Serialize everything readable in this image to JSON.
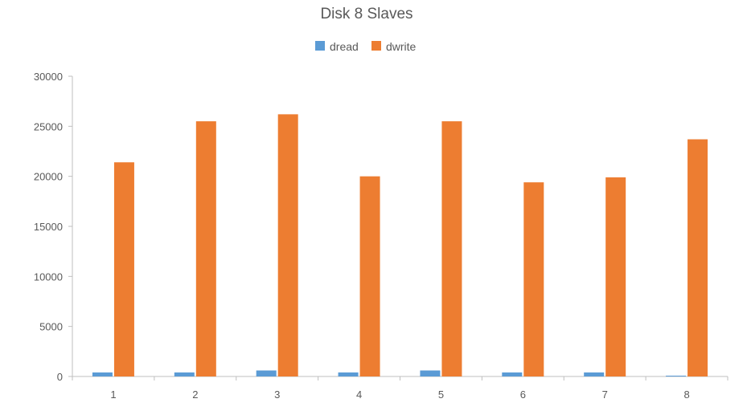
{
  "chart_data": {
    "type": "bar",
    "title": "Disk 8 Slaves",
    "xlabel": "",
    "ylabel": "",
    "categories": [
      "1",
      "2",
      "3",
      "4",
      "5",
      "6",
      "7",
      "8"
    ],
    "series": [
      {
        "name": "dread",
        "color": "#5B9BD5",
        "values": [
          400,
          400,
          600,
          400,
          600,
          400,
          400,
          50
        ]
      },
      {
        "name": "dwrite",
        "color": "#ED7D31",
        "values": [
          21400,
          25500,
          26200,
          20000,
          25500,
          19400,
          19900,
          23700
        ]
      }
    ],
    "ylim": [
      0,
      30000
    ],
    "yticks": [
      "0",
      "5000",
      "10000",
      "15000",
      "20000",
      "25000",
      "30000"
    ],
    "grid": false,
    "legend_position": "top-center",
    "axis_color": "#BFBFBF",
    "text_color": "#595959"
  }
}
